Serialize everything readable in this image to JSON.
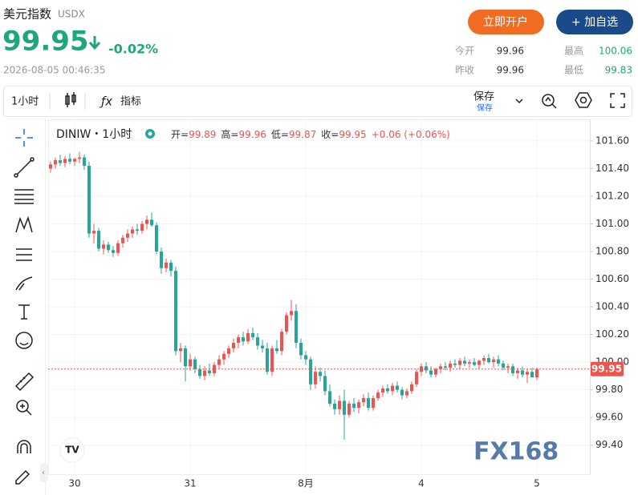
{
  "header": {
    "title": "美元指数",
    "code": "USDX",
    "price": "99.95",
    "change": "-0.02%",
    "timestamp": "2026-08-05 00:46:35",
    "open_account": "立即开户",
    "add_watch": "+ 加自选"
  },
  "stats": [
    {
      "label": "今开",
      "value": "99.96"
    },
    {
      "label": "最高",
      "value": "100.06"
    },
    {
      "label": "昨收",
      "value": "99.96"
    },
    {
      "label": "最低",
      "value": "99.83"
    }
  ],
  "toolbar": {
    "interval": "1小时",
    "indicators": "指标",
    "save": "保存",
    "save_sub": "保存"
  },
  "legend": {
    "symbol": "DINIW・1小时",
    "items": [
      {
        "label": "开=",
        "value": "99.89"
      },
      {
        "label": "高=",
        "value": "99.96"
      },
      {
        "label": "低=",
        "value": "99.87"
      },
      {
        "label": "收=",
        "value": "99.95"
      }
    ],
    "change": "+0.06 (+0.06%)"
  },
  "watermark": "FX168",
  "chart_data": {
    "type": "candlestick",
    "categories": [
      null,
      null,
      null,
      null,
      null,
      "30",
      null,
      null,
      null,
      null,
      null,
      null,
      null,
      null,
      null,
      null,
      null,
      null,
      null,
      null,
      null,
      null,
      null,
      null,
      null,
      null,
      null,
      null,
      null,
      "31",
      null,
      null,
      null,
      null,
      null,
      null,
      null,
      null,
      null,
      null,
      null,
      null,
      null,
      null,
      null,
      null,
      null,
      null,
      null,
      null,
      null,
      null,
      null,
      "8月",
      null,
      null,
      null,
      null,
      null,
      null,
      null,
      null,
      null,
      null,
      null,
      null,
      null,
      null,
      null,
      null,
      null,
      null,
      null,
      null,
      null,
      null,
      null,
      "4",
      null,
      null,
      null,
      null,
      null,
      null,
      null,
      null,
      null,
      null,
      null,
      null,
      null,
      null,
      null,
      null,
      null,
      null,
      null,
      null,
      null,
      null,
      null,
      "5"
    ],
    "open": [
      101.4,
      101.43,
      101.46,
      101.44,
      101.47,
      101.45,
      101.47,
      101.48,
      101.42,
      100.93,
      100.95,
      100.82,
      100.85,
      100.81,
      100.79,
      100.86,
      100.9,
      100.93,
      100.96,
      100.95,
      101.0,
      101.03,
      100.99,
      100.8,
      100.68,
      100.72,
      100.66,
      100.08,
      100.1,
      99.97,
      100.02,
      99.95,
      99.9,
      99.94,
      99.92,
      99.98,
      100.02,
      100.06,
      100.1,
      100.14,
      100.18,
      100.15,
      100.21,
      100.18,
      100.12,
      100.1,
      99.93,
      100.1,
      100.08,
      100.22,
      100.34,
      100.37,
      100.14,
      100.05,
      100.02,
      99.84,
      99.93,
      99.9,
      99.79,
      99.7,
      99.66,
      99.72,
      99.62,
      99.7,
      99.67,
      99.71,
      99.74,
      99.67,
      99.74,
      99.78,
      99.81,
      99.79,
      99.83,
      99.8,
      99.76,
      99.79,
      99.84,
      99.93,
      99.97,
      99.94,
      99.91,
      99.95,
      99.97,
      99.96,
      99.99,
      99.98,
      100.01,
      99.99,
      100.0,
      99.98,
      100.01,
      100.03,
      100.0,
      100.02,
      99.99,
      99.96,
      99.97,
      99.92,
      99.94,
      99.91,
      99.93,
      99.89
    ],
    "high": [
      101.45,
      101.48,
      101.5,
      101.49,
      101.51,
      101.48,
      101.52,
      101.5,
      101.45,
      101.0,
      100.97,
      100.88,
      100.87,
      100.84,
      100.88,
      100.92,
      100.96,
      100.98,
      101.0,
      101.02,
      101.06,
      101.08,
      101.01,
      100.83,
      100.75,
      100.74,
      100.69,
      100.14,
      100.12,
      100.06,
      100.04,
      99.98,
      99.97,
      99.99,
      100.0,
      100.05,
      100.08,
      100.12,
      100.17,
      100.2,
      100.22,
      100.24,
      100.25,
      100.21,
      100.16,
      100.14,
      100.12,
      100.16,
      100.24,
      100.36,
      100.45,
      100.42,
      100.17,
      100.08,
      100.04,
      99.97,
      99.96,
      99.94,
      99.84,
      99.73,
      99.76,
      99.8,
      99.72,
      99.74,
      99.73,
      99.77,
      99.78,
      99.76,
      99.8,
      99.83,
      99.84,
      99.85,
      99.86,
      99.82,
      99.81,
      99.86,
      99.95,
      99.99,
      100.0,
      99.97,
      99.96,
      99.99,
      100.0,
      100.01,
      100.02,
      100.03,
      100.04,
      100.02,
      100.03,
      100.02,
      100.05,
      100.06,
      100.04,
      100.05,
      100.01,
      99.99,
      99.99,
      99.96,
      99.97,
      99.95,
      99.96,
      99.96
    ],
    "low": [
      101.37,
      101.4,
      101.42,
      101.41,
      101.43,
      101.42,
      101.44,
      101.39,
      100.9,
      100.86,
      100.8,
      100.78,
      100.79,
      100.76,
      100.77,
      100.83,
      100.87,
      100.9,
      100.92,
      100.93,
      100.96,
      100.98,
      100.78,
      100.64,
      100.65,
      100.62,
      100.05,
      100.0,
      99.86,
      99.94,
      99.92,
      99.88,
      99.87,
      99.9,
      99.9,
      99.95,
      99.98,
      100.03,
      100.07,
      100.1,
      100.12,
      100.13,
      100.16,
      100.09,
      100.07,
      99.91,
      99.9,
      100.06,
      100.05,
      100.2,
      100.3,
      100.1,
      100.02,
      99.98,
      99.8,
      99.81,
      99.86,
      99.76,
      99.68,
      99.62,
      99.62,
      99.44,
      99.6,
      99.64,
      99.63,
      99.68,
      99.65,
      99.65,
      99.72,
      99.75,
      99.77,
      99.76,
      99.78,
      99.73,
      99.74,
      99.77,
      99.82,
      99.9,
      99.92,
      99.89,
      99.89,
      99.92,
      99.94,
      99.93,
      99.96,
      99.95,
      99.97,
      99.96,
      99.97,
      99.95,
      99.98,
      99.99,
      99.96,
      99.97,
      99.94,
      99.92,
      99.9,
      99.88,
      99.89,
      99.85,
      99.89,
      99.87
    ],
    "close": [
      101.43,
      101.46,
      101.44,
      101.47,
      101.45,
      101.47,
      101.48,
      101.42,
      100.93,
      100.95,
      100.82,
      100.85,
      100.81,
      100.79,
      100.86,
      100.9,
      100.93,
      100.96,
      100.95,
      101.0,
      101.03,
      100.99,
      100.8,
      100.68,
      100.72,
      100.66,
      100.08,
      100.1,
      99.97,
      100.02,
      99.95,
      99.9,
      99.94,
      99.92,
      99.98,
      100.02,
      100.06,
      100.1,
      100.14,
      100.18,
      100.15,
      100.21,
      100.18,
      100.12,
      100.1,
      99.93,
      100.1,
      100.08,
      100.22,
      100.34,
      100.37,
      100.14,
      100.05,
      100.02,
      99.84,
      99.93,
      99.9,
      99.79,
      99.7,
      99.66,
      99.72,
      99.62,
      99.7,
      99.67,
      99.71,
      99.74,
      99.67,
      99.74,
      99.78,
      99.81,
      99.79,
      99.83,
      99.8,
      99.76,
      99.79,
      99.84,
      99.93,
      99.97,
      99.94,
      99.91,
      99.95,
      99.97,
      99.96,
      99.99,
      99.98,
      100.01,
      99.99,
      100.0,
      99.98,
      100.01,
      100.03,
      100.0,
      100.02,
      99.99,
      99.96,
      99.97,
      99.92,
      99.94,
      99.91,
      99.93,
      99.89,
      99.95
    ],
    "up_color": "#ef5350",
    "down_color": "#26a69a",
    "ylim": [
      99.19,
      101.75
    ],
    "yticks": [
      {
        "value": 99.4,
        "label": "99.40"
      },
      {
        "value": 99.6,
        "label": "99.60"
      },
      {
        "value": 99.8,
        "label": "99.80"
      },
      {
        "value": 100,
        "label": "100.00"
      },
      {
        "value": 100.2,
        "label": "100.20"
      },
      {
        "value": 100.4,
        "label": "100.40"
      },
      {
        "value": 100.6,
        "label": "100.60"
      },
      {
        "value": 100.8,
        "label": "100.80"
      },
      {
        "value": 101,
        "label": "101.00"
      },
      {
        "value": 101.2,
        "label": "101.20"
      },
      {
        "value": 101.4,
        "label": "101.40"
      },
      {
        "value": 101.6,
        "label": "101.60"
      }
    ],
    "grid": true
  }
}
